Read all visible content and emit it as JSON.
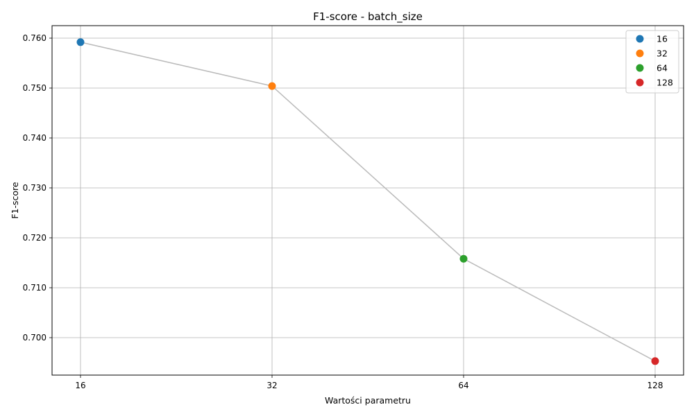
{
  "chart_data": {
    "type": "line",
    "title": "F1-score - batch_size",
    "xlabel": "Wartości parametru",
    "ylabel": "F1-score",
    "categories": [
      "16",
      "32",
      "64",
      "128"
    ],
    "values": [
      0.7592,
      0.7504,
      0.7158,
      0.6953
    ],
    "ylim": [
      0.6925,
      0.7625
    ],
    "yticks": [
      0.7,
      0.71,
      0.72,
      0.73,
      0.74,
      0.75,
      0.76
    ],
    "ytick_labels": [
      "0.700",
      "0.710",
      "0.720",
      "0.730",
      "0.740",
      "0.750",
      "0.760"
    ],
    "grid": true,
    "line_color": "#bbbbbb",
    "point_colors": [
      "#1f77b4",
      "#ff7f0e",
      "#2ca02c",
      "#d62728"
    ],
    "legend": {
      "position": "top-right",
      "entries": [
        "16",
        "32",
        "64",
        "128"
      ]
    }
  }
}
